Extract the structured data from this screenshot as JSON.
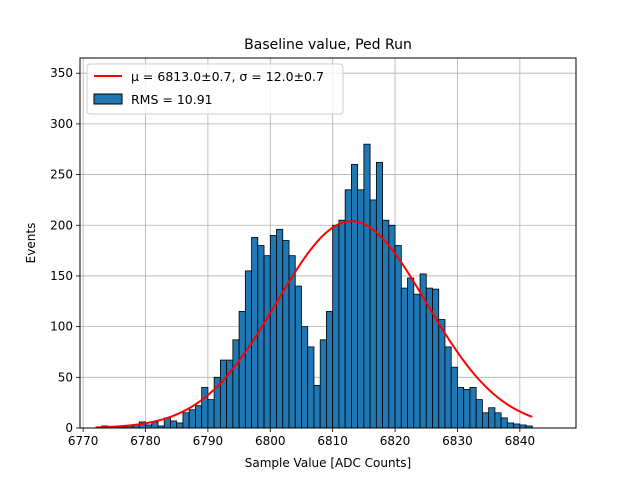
{
  "chart_data": {
    "type": "bar",
    "title": "Baseline value, Ped Run",
    "xlabel": "Sample Value [ADC Counts]",
    "ylabel": "Events",
    "xlim": [
      6769.5,
      6849
    ],
    "ylim": [
      0,
      365
    ],
    "xticks": [
      6770,
      6780,
      6790,
      6800,
      6810,
      6820,
      6830,
      6840
    ],
    "yticks": [
      0,
      50,
      100,
      150,
      200,
      250,
      300,
      350
    ],
    "grid": true,
    "legend_position": "upper-left",
    "bin_width": 1,
    "bin_start": 6772,
    "histogram_values": [
      0,
      2,
      0,
      1,
      1,
      2,
      3,
      6,
      3,
      6,
      2,
      10,
      7,
      5,
      15,
      18,
      22,
      40,
      28,
      50,
      67,
      67,
      87,
      115,
      155,
      188,
      180,
      170,
      190,
      196,
      185,
      170,
      140,
      100,
      80,
      42,
      87,
      115,
      200,
      205,
      235,
      260,
      235,
      280,
      225,
      262,
      205,
      200,
      180,
      138,
      148,
      132,
      152,
      138,
      137,
      107,
      80,
      60,
      40,
      38,
      40,
      28,
      15,
      20,
      15,
      10,
      5,
      4,
      3,
      2
    ],
    "fit": {
      "mu": 6813.0,
      "sigma": 12.0,
      "amplitude": 204
    },
    "legend": {
      "fit_label": "μ = 6813.0±0.7, σ = 12.0±0.7",
      "hist_label": "RMS = 10.91"
    },
    "colors": {
      "bar": "#1f77b4",
      "bar_edge": "#000000",
      "fit": "#ff0000",
      "grid": "#b0b0b0"
    }
  }
}
